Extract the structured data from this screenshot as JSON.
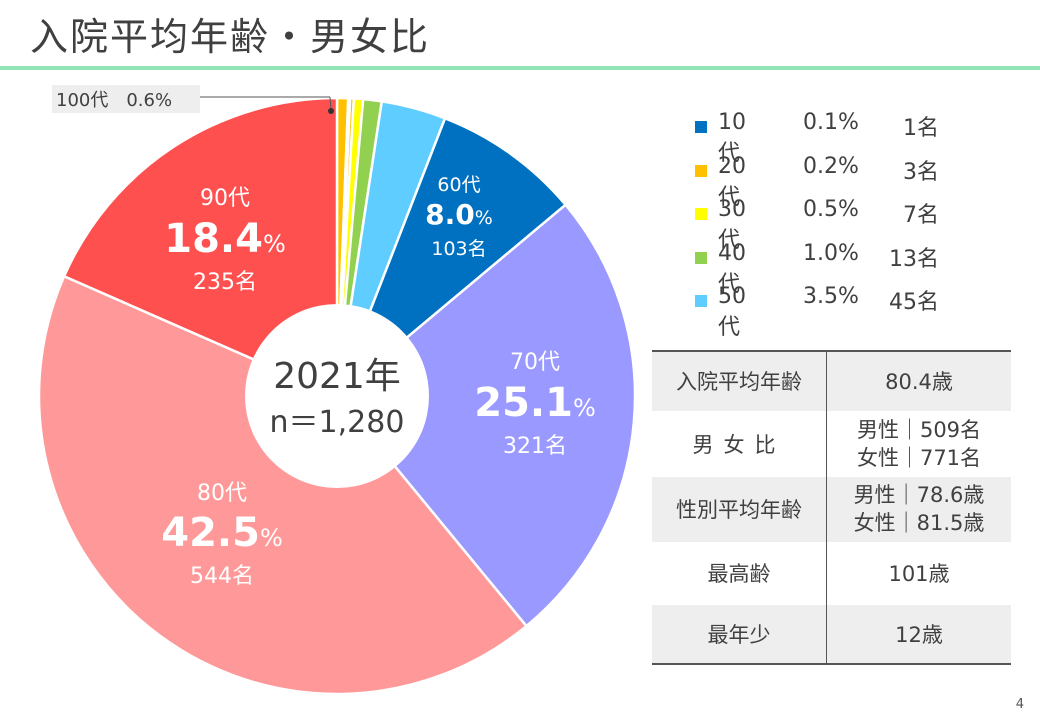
{
  "title": "入院平均年齢・男女比",
  "page_number": "4",
  "center": {
    "year": "2021年",
    "n": "n＝1,280"
  },
  "chart_data": {
    "type": "pie",
    "title": "入院平均年齢・男女比",
    "slices": [
      {
        "label": "100代",
        "percent": 0.6,
        "count": "",
        "color": "#ffc000",
        "pct_text": "100代　0.6%"
      },
      {
        "label": "10代",
        "percent": 0.1,
        "count": "1名",
        "color": "#0070c0"
      },
      {
        "label": "20代",
        "percent": 0.2,
        "count": "3名",
        "color": "#ffc000"
      },
      {
        "label": "30代",
        "percent": 0.5,
        "count": "7名",
        "color": "#ffff00"
      },
      {
        "label": "40代",
        "percent": 1.0,
        "count": "13名",
        "color": "#92d050"
      },
      {
        "label": "50代",
        "percent": 3.5,
        "count": "45名",
        "color": "#5fcdff"
      },
      {
        "label": "60代",
        "percent": 8.0,
        "count": "103名",
        "color": "#0070c0"
      },
      {
        "label": "70代",
        "percent": 25.1,
        "count": "321名",
        "color": "#9999ff"
      },
      {
        "label": "80代",
        "percent": 42.5,
        "count": "544名",
        "color": "#ff9999"
      },
      {
        "label": "90代",
        "percent": 18.4,
        "count": "235名",
        "color": "#ff5050"
      }
    ]
  },
  "legend": [
    {
      "label": "10代",
      "pct": "0.1%",
      "count": "1名",
      "color": "#0070c0"
    },
    {
      "label": "20代",
      "pct": "0.2%",
      "count": "3名",
      "color": "#ffc000"
    },
    {
      "label": "30代",
      "pct": "0.5%",
      "count": "7名",
      "color": "#ffff00"
    },
    {
      "label": "40代",
      "pct": "1.0%",
      "count": "13名",
      "color": "#92d050"
    },
    {
      "label": "50代",
      "pct": "3.5%",
      "count": "45名",
      "color": "#5fcdff"
    }
  ],
  "slice_labels": [
    {
      "name": "60代",
      "value": "8.0",
      "unit": "%",
      "count": "103名"
    },
    {
      "name": "70代",
      "value": "25.1",
      "unit": "%",
      "count": "321名"
    },
    {
      "name": "80代",
      "value": "42.5",
      "unit": "%",
      "count": "544名"
    },
    {
      "name": "90代",
      "value": "18.4",
      "unit": "%",
      "count": "235名"
    }
  ],
  "callout_100": "100代　0.6%",
  "table": {
    "avg_age_label": "入院平均年齢",
    "avg_age_value": "80.4歳",
    "ratio_label": "男女比",
    "ratio_male": "男性｜509名",
    "ratio_female": "女性｜771名",
    "sex_avg_label": "性別平均年齢",
    "sex_avg_male": "男性｜78.6歳",
    "sex_avg_female": "女性｜81.5歳",
    "max_label": "最高齢",
    "max_value": "101歳",
    "min_label": "最年少",
    "min_value": "12歳"
  }
}
